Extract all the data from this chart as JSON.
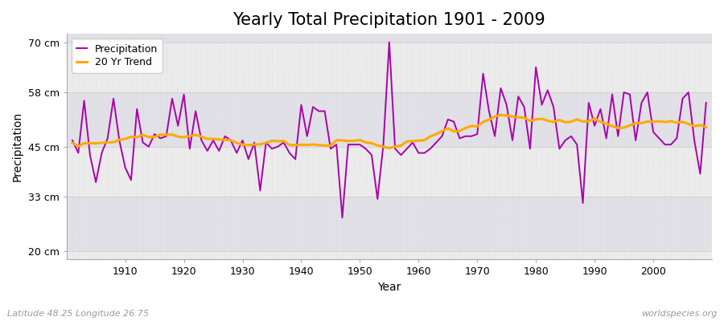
{
  "title": "Yearly Total Precipitation 1901 - 2009",
  "xlabel": "Year",
  "ylabel": "Precipitation",
  "years": [
    1901,
    1902,
    1903,
    1904,
    1905,
    1906,
    1907,
    1908,
    1909,
    1910,
    1911,
    1912,
    1913,
    1914,
    1915,
    1916,
    1917,
    1918,
    1919,
    1920,
    1921,
    1922,
    1923,
    1924,
    1925,
    1926,
    1927,
    1928,
    1929,
    1930,
    1931,
    1932,
    1933,
    1934,
    1935,
    1936,
    1937,
    1938,
    1939,
    1940,
    1941,
    1942,
    1943,
    1944,
    1945,
    1946,
    1947,
    1948,
    1949,
    1950,
    1951,
    1952,
    1953,
    1954,
    1955,
    1956,
    1957,
    1958,
    1959,
    1960,
    1961,
    1962,
    1963,
    1964,
    1965,
    1966,
    1967,
    1968,
    1969,
    1970,
    1971,
    1972,
    1973,
    1974,
    1975,
    1976,
    1977,
    1978,
    1979,
    1980,
    1981,
    1982,
    1983,
    1984,
    1985,
    1986,
    1987,
    1988,
    1989,
    1990,
    1991,
    1992,
    1993,
    1994,
    1995,
    1996,
    1997,
    1998,
    1999,
    2000,
    2001,
    2002,
    2003,
    2004,
    2005,
    2006,
    2007,
    2008,
    2009
  ],
  "precip": [
    46.5,
    43.5,
    56.0,
    43.0,
    36.5,
    43.5,
    47.0,
    56.5,
    46.5,
    40.0,
    37.0,
    54.0,
    46.0,
    45.0,
    48.0,
    47.0,
    47.5,
    56.5,
    50.0,
    57.5,
    44.5,
    53.5,
    46.5,
    44.0,
    46.5,
    44.0,
    47.5,
    46.5,
    43.5,
    46.5,
    42.0,
    46.0,
    34.5,
    46.0,
    44.5,
    45.0,
    46.0,
    43.5,
    42.0,
    55.0,
    47.5,
    54.5,
    53.5,
    53.5,
    44.5,
    45.5,
    28.0,
    45.5,
    45.5,
    45.5,
    44.5,
    43.0,
    32.5,
    45.5,
    70.0,
    44.5,
    43.0,
    44.5,
    46.0,
    43.5,
    43.5,
    44.5,
    46.0,
    47.5,
    51.5,
    51.0,
    47.0,
    47.5,
    47.5,
    48.0,
    62.5,
    53.5,
    47.5,
    59.0,
    55.0,
    46.5,
    57.0,
    54.5,
    44.5,
    64.0,
    55.0,
    58.5,
    54.5,
    44.5,
    46.5,
    47.5,
    45.5,
    31.5,
    55.5,
    50.0,
    54.0,
    47.0,
    57.5,
    47.5,
    58.0,
    57.5,
    46.5,
    55.5,
    58.0,
    48.5,
    47.0,
    45.5,
    45.5,
    47.0,
    56.5,
    58.0,
    46.5,
    38.5,
    55.5
  ],
  "precip_color": "#aa00aa",
  "trend_color": "#ffaa00",
  "figure_bg": "#ffffff",
  "plot_bg_light": "#ebebeb",
  "plot_bg_dark": "#e0e0e6",
  "yticks": [
    20,
    33,
    45,
    58,
    70
  ],
  "ytick_labels": [
    "20 cm",
    "33 cm",
    "45 cm",
    "58 cm",
    "70 cm"
  ],
  "ylim": [
    18,
    72
  ],
  "xlim": [
    1900,
    2010
  ],
  "grid_color": "#cccccc",
  "legend_labels": [
    "Precipitation",
    "20 Yr Trend"
  ],
  "subtitle": "Latitude 48.25 Longitude 26.75",
  "watermark": "worldspecies.org",
  "title_fontsize": 15,
  "axis_fontsize": 9,
  "label_fontsize": 9
}
